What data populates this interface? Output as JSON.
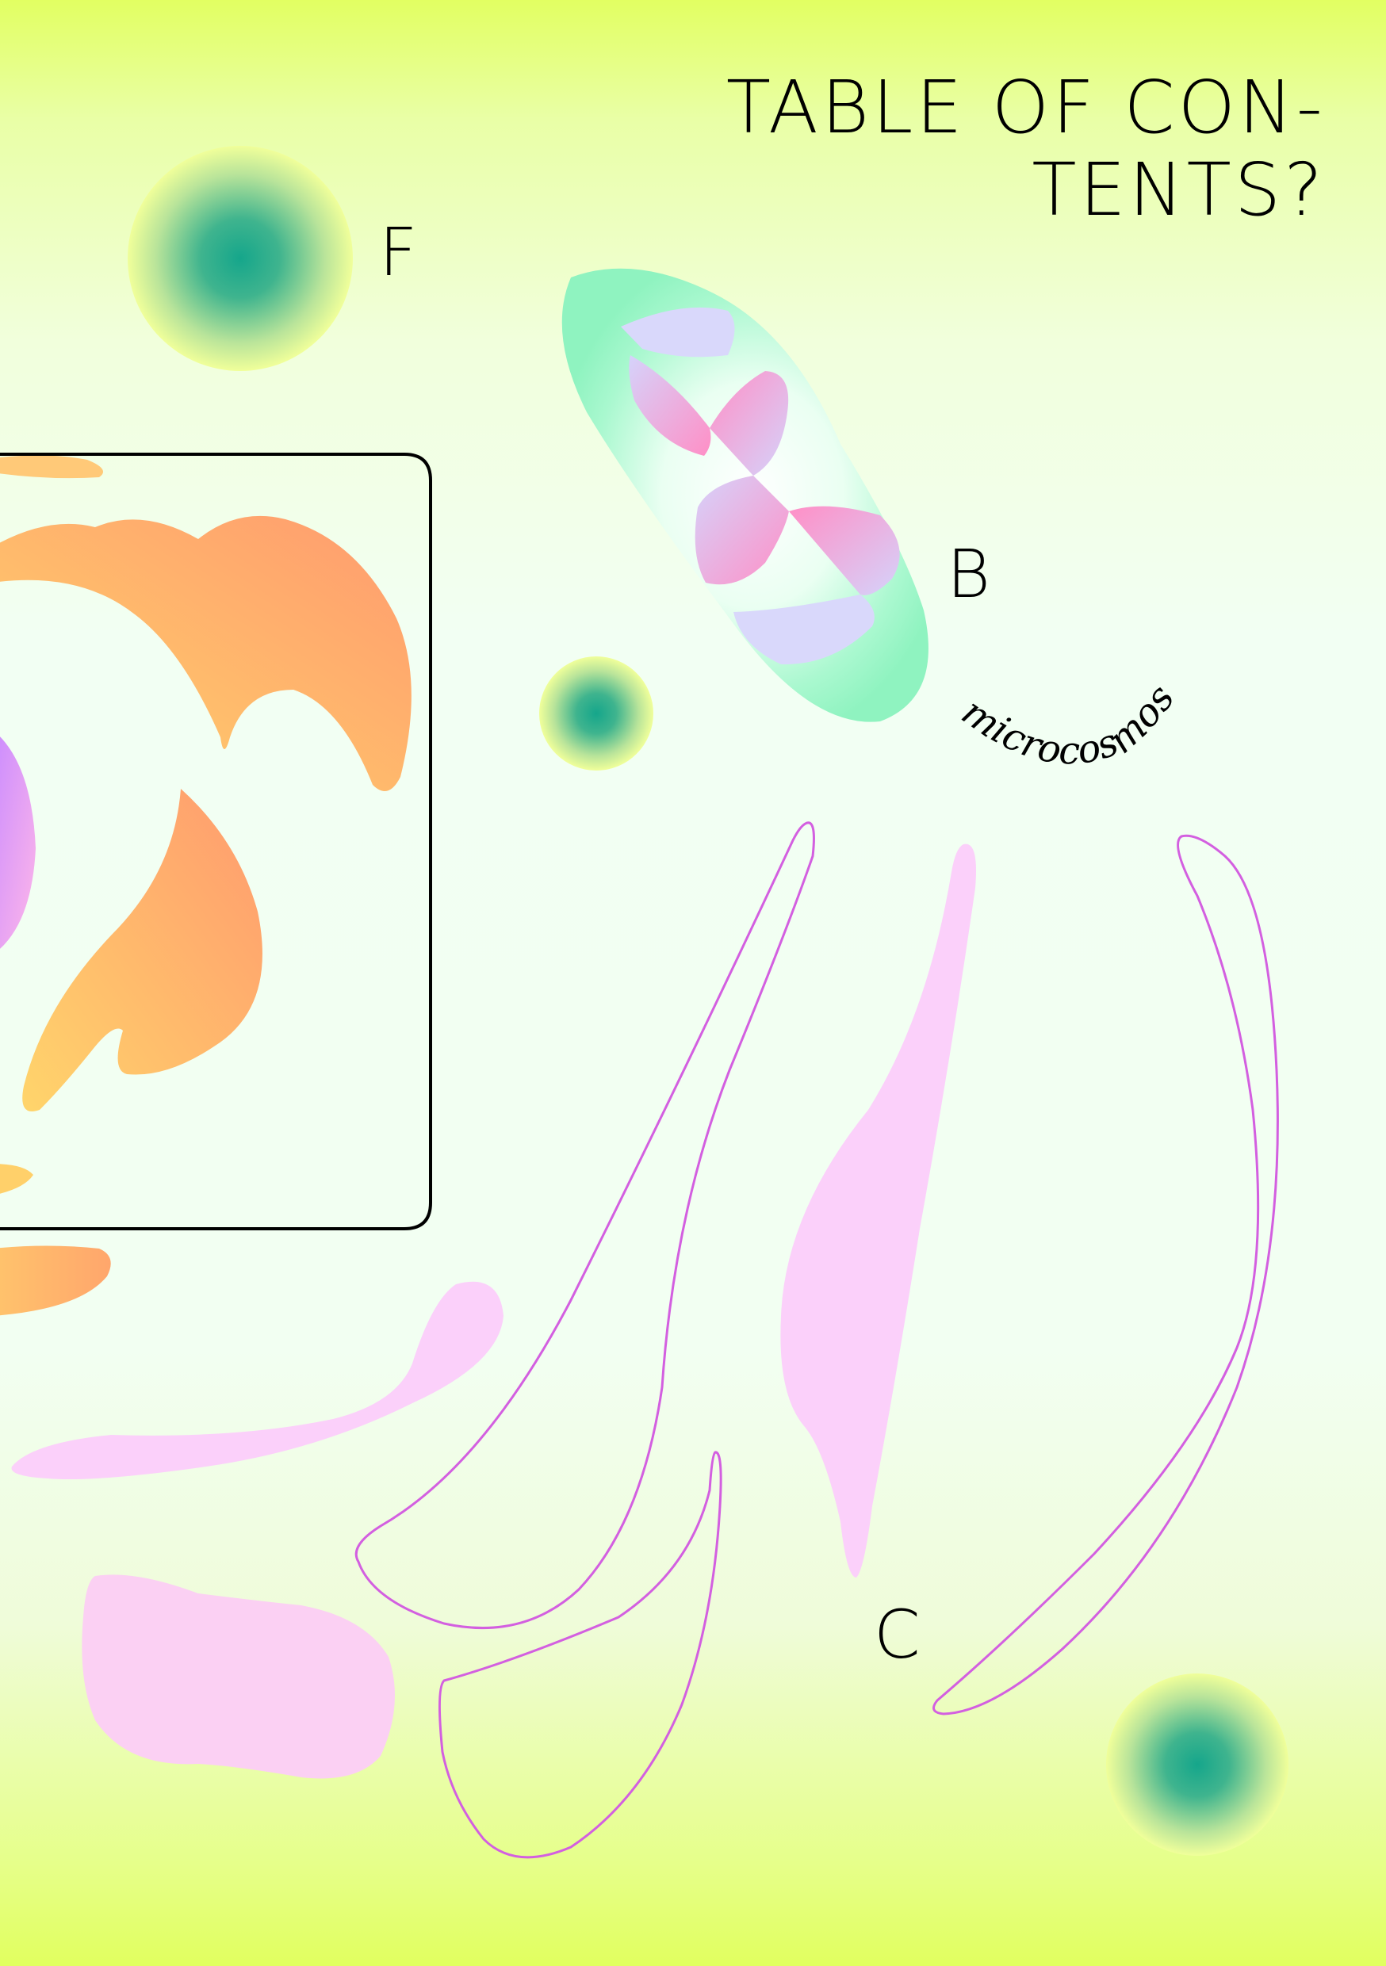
{
  "page": {
    "title_lines": [
      "TABLE OF CON-",
      "TENTS?"
    ],
    "markers": {
      "f": "F",
      "b": "B",
      "c": "C"
    },
    "curved_word": "microcosmos"
  },
  "colors": {
    "background_top": "#e2ff62",
    "background_middle": "#f2fff2",
    "orb_center": "#17a98a",
    "orb_edge": "#efff96",
    "orange_shape": "#ffa06a",
    "pink_shape": "#fbcffa",
    "outline_stroke": "#d35fe0",
    "frame_stroke": "#000000"
  }
}
